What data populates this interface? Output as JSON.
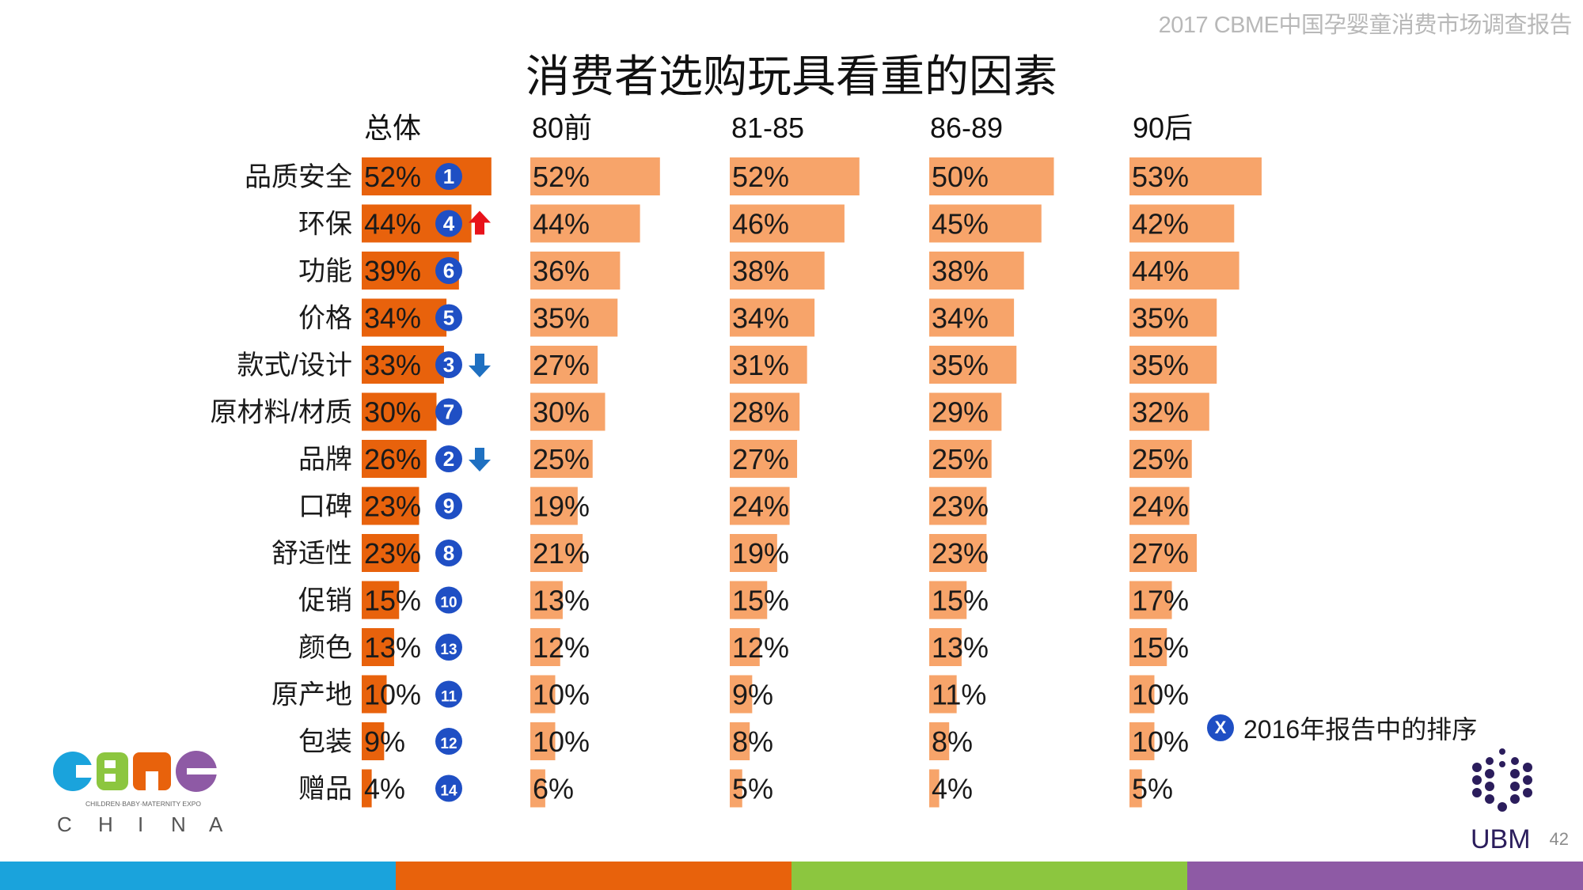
{
  "report_title": "2017 CBME中国孕婴童消费市场调查报告",
  "page_number": "42",
  "legend": {
    "badge": "X",
    "text": "2016年报告中的排序"
  },
  "logos": {
    "cbme": "CBME CHINA",
    "cbme_sub": "CHILDREN·BABY·MATERNITY EXPO",
    "ubm": "UBM"
  },
  "colors": {
    "total_bar": "#e8620c",
    "group_bar": "#f7a46a",
    "badge": "#1f4fc4",
    "up_arrow": "#e8121a",
    "down_arrow": "#1f70c1",
    "stripe": [
      "#1aa3dc",
      "#e8620c",
      "#8cc63f",
      "#8e5aa5"
    ]
  },
  "chart_data": {
    "type": "bar",
    "title": "消费者选购玩具看重的因素",
    "xlabel": "",
    "ylabel": "",
    "xlim": [
      0,
      100
    ],
    "unit": "%",
    "categories": [
      "品质安全",
      "环保",
      "功能",
      "价格",
      "款式/设计",
      "原材料/材质",
      "品牌",
      "口碑",
      "舒适性",
      "促销",
      "颜色",
      "原产地",
      "包装",
      "赠品"
    ],
    "series": [
      {
        "name": "总体",
        "values": [
          52,
          44,
          39,
          34,
          33,
          30,
          26,
          23,
          23,
          15,
          13,
          10,
          9,
          4
        ]
      },
      {
        "name": "80前",
        "values": [
          52,
          44,
          36,
          35,
          27,
          30,
          25,
          19,
          21,
          13,
          12,
          10,
          10,
          6
        ]
      },
      {
        "name": "81-85",
        "values": [
          52,
          46,
          38,
          34,
          31,
          28,
          27,
          24,
          19,
          15,
          12,
          9,
          8,
          5
        ]
      },
      {
        "name": "86-89",
        "values": [
          50,
          45,
          38,
          34,
          35,
          29,
          25,
          23,
          23,
          15,
          13,
          11,
          8,
          4
        ]
      },
      {
        "name": "90后",
        "values": [
          53,
          42,
          44,
          35,
          35,
          32,
          25,
          24,
          27,
          17,
          15,
          10,
          10,
          5
        ]
      }
    ],
    "rank_2016": [
      1,
      4,
      6,
      5,
      3,
      7,
      2,
      9,
      8,
      10,
      13,
      11,
      12,
      14
    ],
    "rank_change": [
      "",
      "up",
      "",
      "",
      "down",
      "",
      "down",
      "",
      "",
      "",
      "",
      "",
      "",
      ""
    ]
  }
}
